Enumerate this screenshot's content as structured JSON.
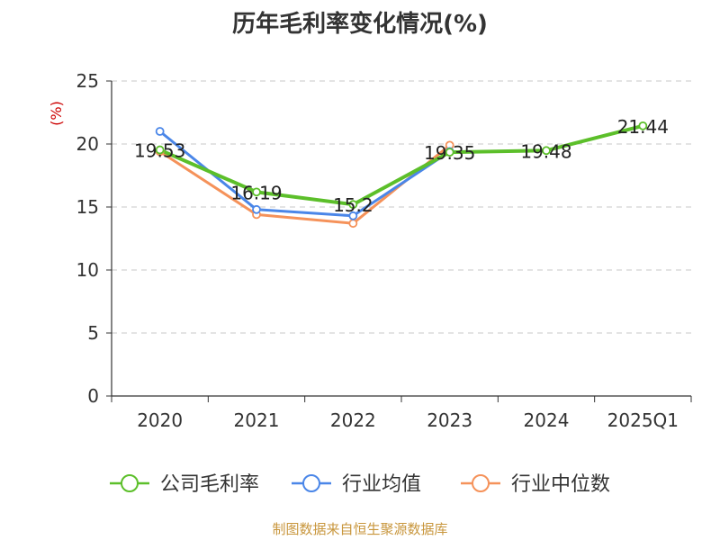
{
  "chart_data": {
    "type": "line",
    "title": "历年毛利率变化情况(%)",
    "ylabel": "(%)",
    "xlabel": "",
    "categories": [
      "2020",
      "2021",
      "2022",
      "2023",
      "2024",
      "2025Q1"
    ],
    "ylim": [
      0,
      25
    ],
    "yticks": [
      0,
      5,
      10,
      15,
      20,
      25
    ],
    "grid": true,
    "legend_position": "bottom",
    "series": [
      {
        "name": "公司毛利率",
        "color": "#5cbf2a",
        "values": [
          19.53,
          16.19,
          15.2,
          19.35,
          19.48,
          21.44
        ],
        "labels": [
          "19.53",
          "16.19",
          "15.2",
          "19.35",
          "19.48",
          "21.44"
        ]
      },
      {
        "name": "行业均值",
        "color": "#4a86e8",
        "values": [
          21.0,
          14.8,
          14.3,
          19.4,
          null,
          null
        ]
      },
      {
        "name": "行业中位数",
        "color": "#f5925a",
        "values": [
          19.4,
          14.4,
          13.7,
          19.9,
          null,
          null
        ]
      }
    ]
  },
  "footer": "制图数据来自恒生聚源数据库"
}
